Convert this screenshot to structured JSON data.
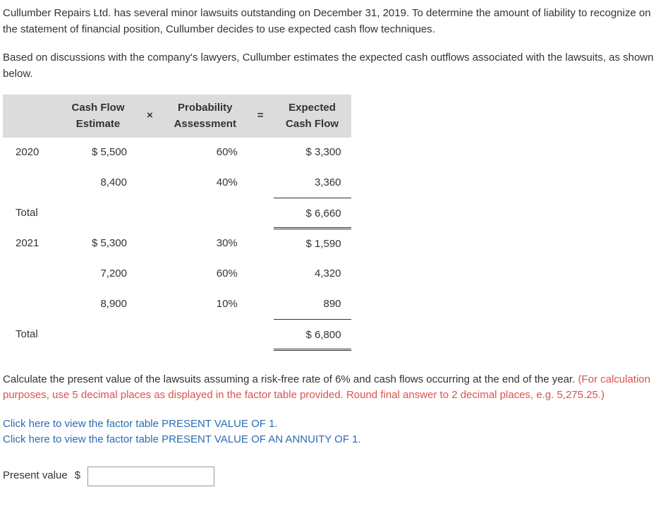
{
  "intro1": "Cullumber Repairs Ltd. has several minor lawsuits outstanding on December 31, 2019. To determine the amount of liability to recognize on the statement of financial position, Cullumber decides to use expected cash flow techniques.",
  "intro2": "Based on discussions with the company's lawyers, Cullumber estimates the expected cash outflows associated with the lawsuits, as shown below.",
  "headers": {
    "cash_flow_l1": "Cash Flow",
    "cash_flow_l2": "Estimate",
    "op_times": "×",
    "prob_l1": "Probability",
    "prob_l2": "Assessment",
    "op_eq": "=",
    "exp_l1": "Expected",
    "exp_l2": "Cash Flow"
  },
  "rows": {
    "y2020": "2020",
    "r1_cash": "$ 5,500",
    "r1_prob": "60%",
    "r1_exp": "$ 3,300",
    "r2_cash": "8,400",
    "r2_prob": "40%",
    "r2_exp": "3,360",
    "total1_label": "Total",
    "total1_exp": "$ 6,660",
    "y2021": "2021",
    "r3_cash": "$ 5,300",
    "r3_prob": "30%",
    "r3_exp": "$ 1,590",
    "r4_cash": "7,200",
    "r4_prob": "60%",
    "r4_exp": "4,320",
    "r5_cash": "8,900",
    "r5_prob": "10%",
    "r5_exp": "890",
    "total2_label": "Total",
    "total2_exp": "$ 6,800"
  },
  "instruction_black": "Calculate the present value of the lawsuits assuming a risk-free rate of 6% and cash flows occurring at the end of the year. ",
  "instruction_red": "(For calculation purposes, use 5 decimal places as displayed in the factor table provided. Round final answer to 2 decimal places, e.g. 5,275.25.)",
  "link1": "Click here to view the factor table PRESENT VALUE OF 1.",
  "link2": "Click here to view the factor table PRESENT VALUE OF AN ANNUITY OF 1.",
  "answer_label": "Present value",
  "dollar": "$",
  "answer_value": ""
}
